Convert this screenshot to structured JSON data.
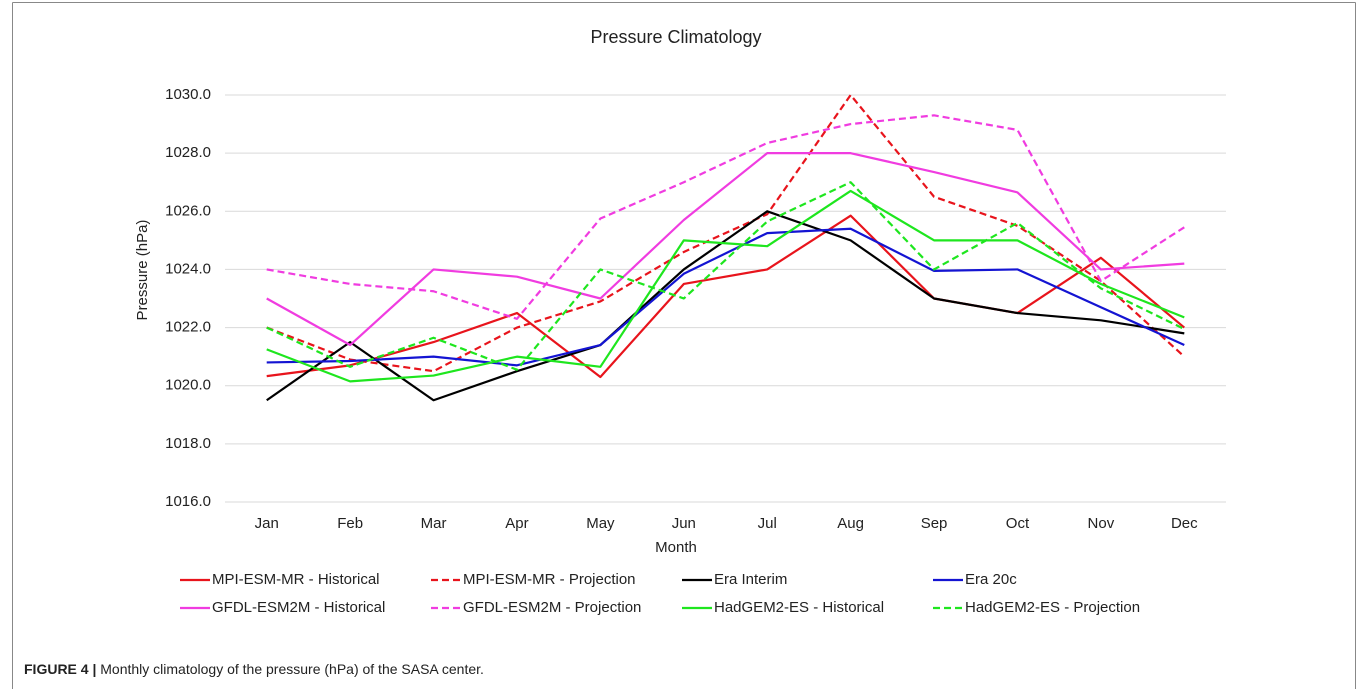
{
  "chart_data": {
    "type": "line",
    "title": "Pressure Climatology",
    "x_label": "Month",
    "y_label": "Pressure (hPa)",
    "categories": [
      "Jan",
      "Feb",
      "Mar",
      "Apr",
      "May",
      "Jun",
      "Jul",
      "Aug",
      "Sep",
      "Oct",
      "Nov",
      "Dec"
    ],
    "ylim": [
      1016,
      1030
    ],
    "yticks": [
      {
        "value": 1016,
        "label": "1016.0"
      },
      {
        "value": 1018,
        "label": "1018.0"
      },
      {
        "value": 1020,
        "label": "1020.0"
      },
      {
        "value": 1022,
        "label": "1022.0"
      },
      {
        "value": 1024,
        "label": "1024.0"
      },
      {
        "value": 1026,
        "label": "1026.0"
      },
      {
        "value": 1028,
        "label": "1028.0"
      },
      {
        "value": 1030,
        "label": "1030.0"
      }
    ],
    "grid": true,
    "legend": "bottom",
    "series": [
      {
        "name": "MPI-ESM-MR - Historical",
        "color": "#e8141c",
        "dashed": false,
        "values": [
          1020.33,
          1020.7,
          1021.5,
          1022.5,
          1020.3,
          1023.5,
          1024.0,
          1025.85,
          1023.0,
          1022.5,
          1024.4,
          1022.0
        ]
      },
      {
        "name": "MPI-ESM-MR - Projection",
        "color": "#e8141c",
        "dashed": true,
        "values": [
          1022.0,
          1020.9,
          1020.5,
          1022.0,
          1022.9,
          1024.6,
          1025.9,
          1030.0,
          1026.5,
          1025.5,
          1023.6,
          1021.0
        ]
      },
      {
        "name": "Era Interim",
        "color": "#000000",
        "dashed": false,
        "values": [
          1019.5,
          1021.5,
          1019.5,
          1020.5,
          1021.4,
          1024.0,
          1026.0,
          1025.0,
          1023.0,
          1022.5,
          1022.25,
          1021.8
        ]
      },
      {
        "name": "Era 20c",
        "color": "#1414d2",
        "dashed": false,
        "values": [
          1020.8,
          1020.85,
          1021.0,
          1020.7,
          1021.4,
          1023.85,
          1025.25,
          1025.4,
          1023.95,
          1024.0,
          1022.7,
          1021.4
        ]
      },
      {
        "name": "GFDL-ESM2M - Historical",
        "color": "#f03ce0",
        "dashed": false,
        "values": [
          1023.0,
          1021.4,
          1024.0,
          1023.75,
          1023.0,
          1025.7,
          1028.0,
          1028.0,
          1027.35,
          1026.65,
          1024.0,
          1024.2
        ]
      },
      {
        "name": "GFDL-ESM2M - Projection",
        "color": "#f03ce0",
        "dashed": true,
        "values": [
          1024.0,
          1023.5,
          1023.25,
          1022.3,
          1025.75,
          1027.0,
          1028.35,
          1029.0,
          1029.3,
          1028.8,
          1023.6,
          1025.45
        ]
      },
      {
        "name": "HadGEM2-ES - Historical",
        "color": "#1ee61e",
        "dashed": false,
        "values": [
          1021.25,
          1020.15,
          1020.35,
          1021.0,
          1020.65,
          1025.0,
          1024.8,
          1026.7,
          1025.0,
          1025.0,
          1023.5,
          1022.35
        ]
      },
      {
        "name": "HadGEM2-ES - Projection",
        "color": "#1ee61e",
        "dashed": true,
        "values": [
          1022.0,
          1020.65,
          1021.65,
          1020.55,
          1024.0,
          1023.0,
          1025.65,
          1027.0,
          1024.0,
          1025.6,
          1023.35,
          1021.95
        ]
      }
    ]
  },
  "caption_label": "FIGURE 4 |",
  "caption": "Monthly climatology of the pressure (hPa) of the SASA center."
}
